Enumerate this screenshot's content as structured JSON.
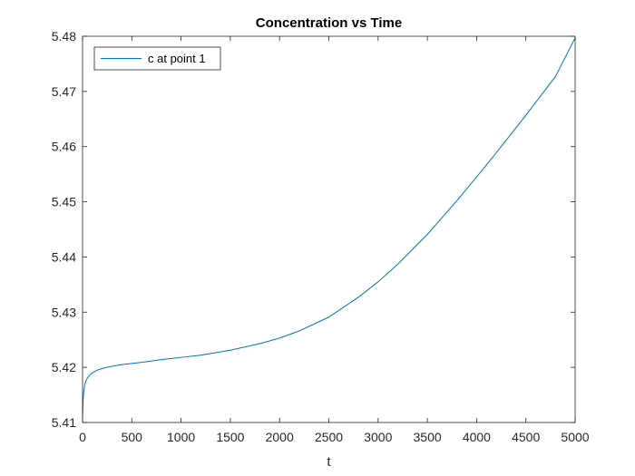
{
  "chart_data": {
    "type": "line",
    "title": "Concentration vs Time",
    "xlabel": "t",
    "ylabel": "",
    "xlim": [
      0,
      5000
    ],
    "ylim": [
      5.41,
      5.48
    ],
    "xticks": [
      0,
      500,
      1000,
      1500,
      2000,
      2500,
      3000,
      3500,
      4000,
      4500,
      5000
    ],
    "yticks": [
      5.41,
      5.42,
      5.43,
      5.44,
      5.45,
      5.46,
      5.47,
      5.48
    ],
    "xtick_labels": [
      "0",
      "500",
      "1000",
      "1500",
      "2000",
      "2500",
      "3000",
      "3500",
      "4000",
      "4500",
      "5000"
    ],
    "ytick_labels": [
      "5.41",
      "5.42",
      "5.43",
      "5.44",
      "5.45",
      "5.46",
      "5.47",
      "5.48"
    ],
    "grid": false,
    "box": true,
    "legend_position": "top-left",
    "series": [
      {
        "name": "c at point 1",
        "color": "#0072BD",
        "x": [
          0,
          5,
          10,
          20,
          30,
          50,
          75,
          100,
          150,
          200,
          300,
          400,
          500,
          600,
          800,
          1000,
          1200,
          1500,
          1800,
          2000,
          2200,
          2500,
          2800,
          3000,
          3200,
          3500,
          3800,
          4000,
          4200,
          4500,
          4800,
          5000
        ],
        "y": [
          5.4108,
          5.4138,
          5.4152,
          5.4166,
          5.4174,
          5.4181,
          5.4186,
          5.419,
          5.4195,
          5.4198,
          5.4202,
          5.4205,
          5.4207,
          5.4209,
          5.4214,
          5.4218,
          5.4222,
          5.4231,
          5.4243,
          5.4253,
          5.4266,
          5.4291,
          5.4327,
          5.4355,
          5.4387,
          5.4441,
          5.4502,
          5.4545,
          5.4589,
          5.4657,
          5.4727,
          5.4797
        ]
      }
    ]
  }
}
